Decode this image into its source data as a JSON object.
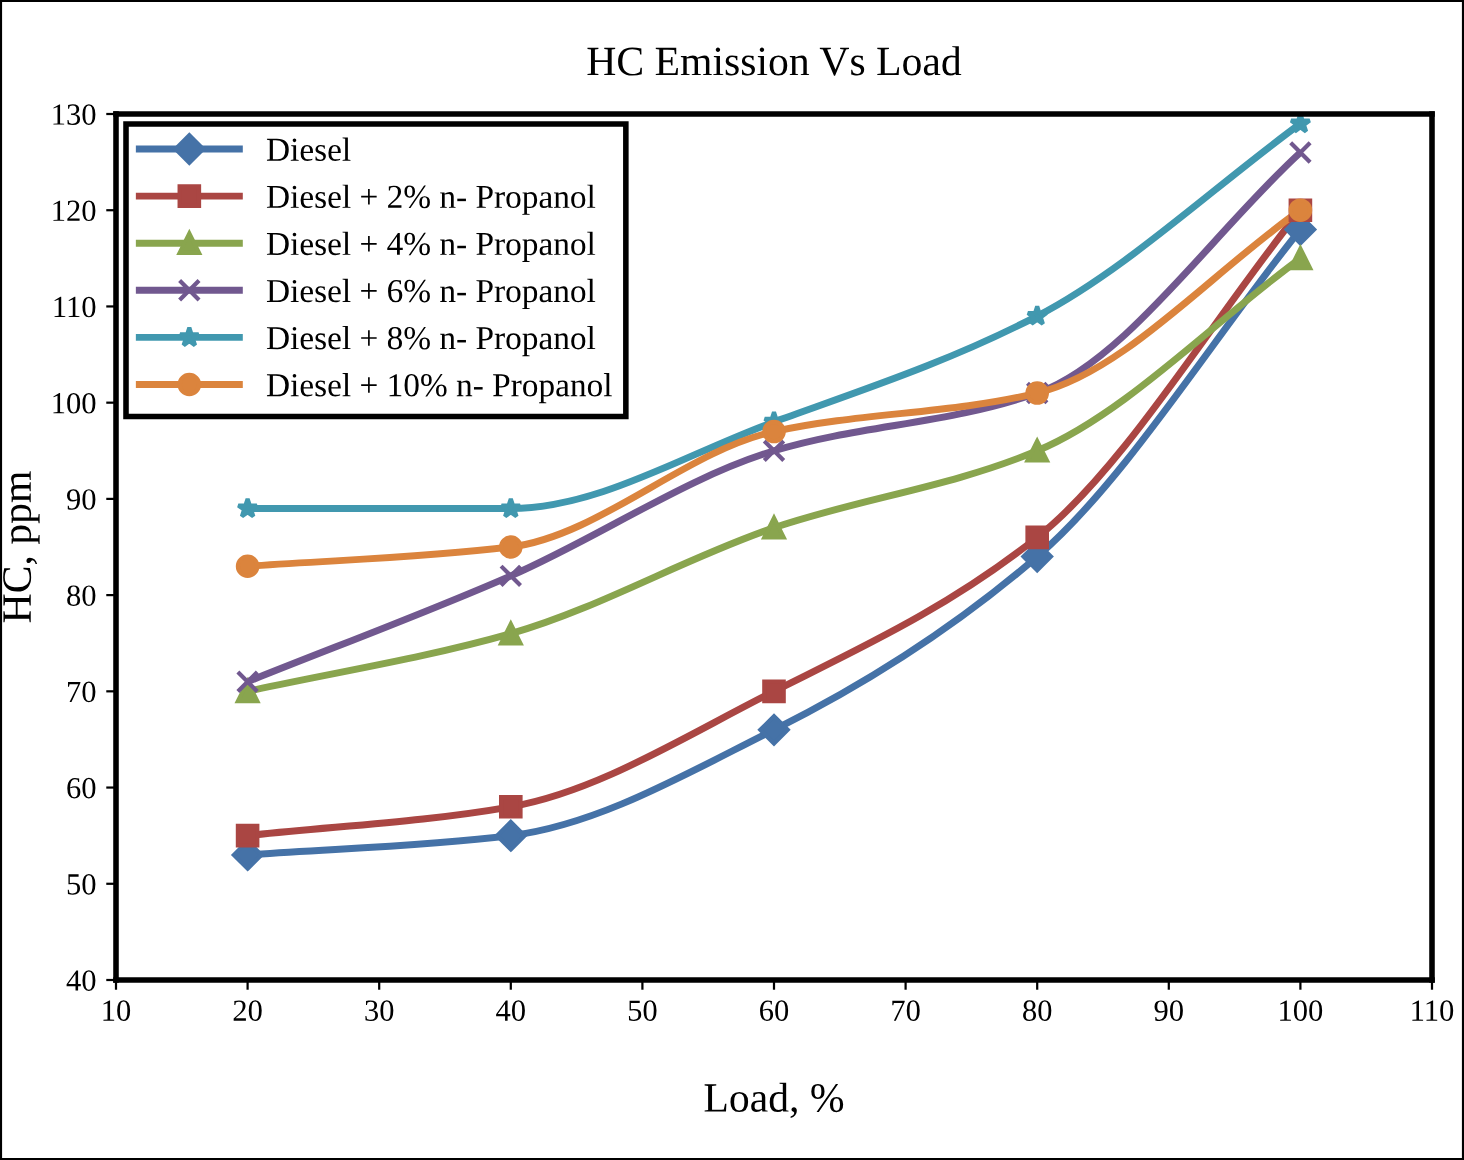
{
  "chart_data": {
    "type": "line",
    "title": "HC Emission Vs Load",
    "xlabel": "Load, %",
    "ylabel": "HC, ppm",
    "x": [
      20,
      40,
      60,
      80,
      100
    ],
    "xlim": [
      10,
      110
    ],
    "xticks": [
      10,
      20,
      30,
      40,
      50,
      60,
      70,
      80,
      90,
      100,
      110
    ],
    "ylim": [
      40,
      130
    ],
    "yticks": [
      40,
      50,
      60,
      70,
      80,
      90,
      100,
      110,
      120,
      130
    ],
    "grid": false,
    "legend": "top left",
    "line_style": "solid",
    "series": [
      {
        "name": "Diesel",
        "color": "#4572a7",
        "marker": "diamond",
        "values": [
          53,
          55,
          66,
          84,
          118
        ]
      },
      {
        "name": "Diesel + 2% n- Propanol",
        "color": "#aa4643",
        "marker": "square",
        "values": [
          55,
          58,
          70,
          86,
          120
        ]
      },
      {
        "name": "Diesel + 4% n- Propanol",
        "color": "#89a54e",
        "marker": "triangle",
        "values": [
          70,
          76,
          87,
          95,
          115
        ]
      },
      {
        "name": "Diesel + 6% n- Propanol",
        "color": "#71588f",
        "marker": "cross",
        "values": [
          71,
          82,
          95,
          101,
          126
        ]
      },
      {
        "name": "Diesel + 8% n- Propanol",
        "color": "#4198af",
        "marker": "star",
        "values": [
          89,
          89,
          98,
          109,
          129
        ]
      },
      {
        "name": "Diesel + 10% n- Propanol",
        "color": "#db843d",
        "marker": "circle",
        "values": [
          83,
          85,
          97,
          101,
          120
        ]
      }
    ]
  }
}
